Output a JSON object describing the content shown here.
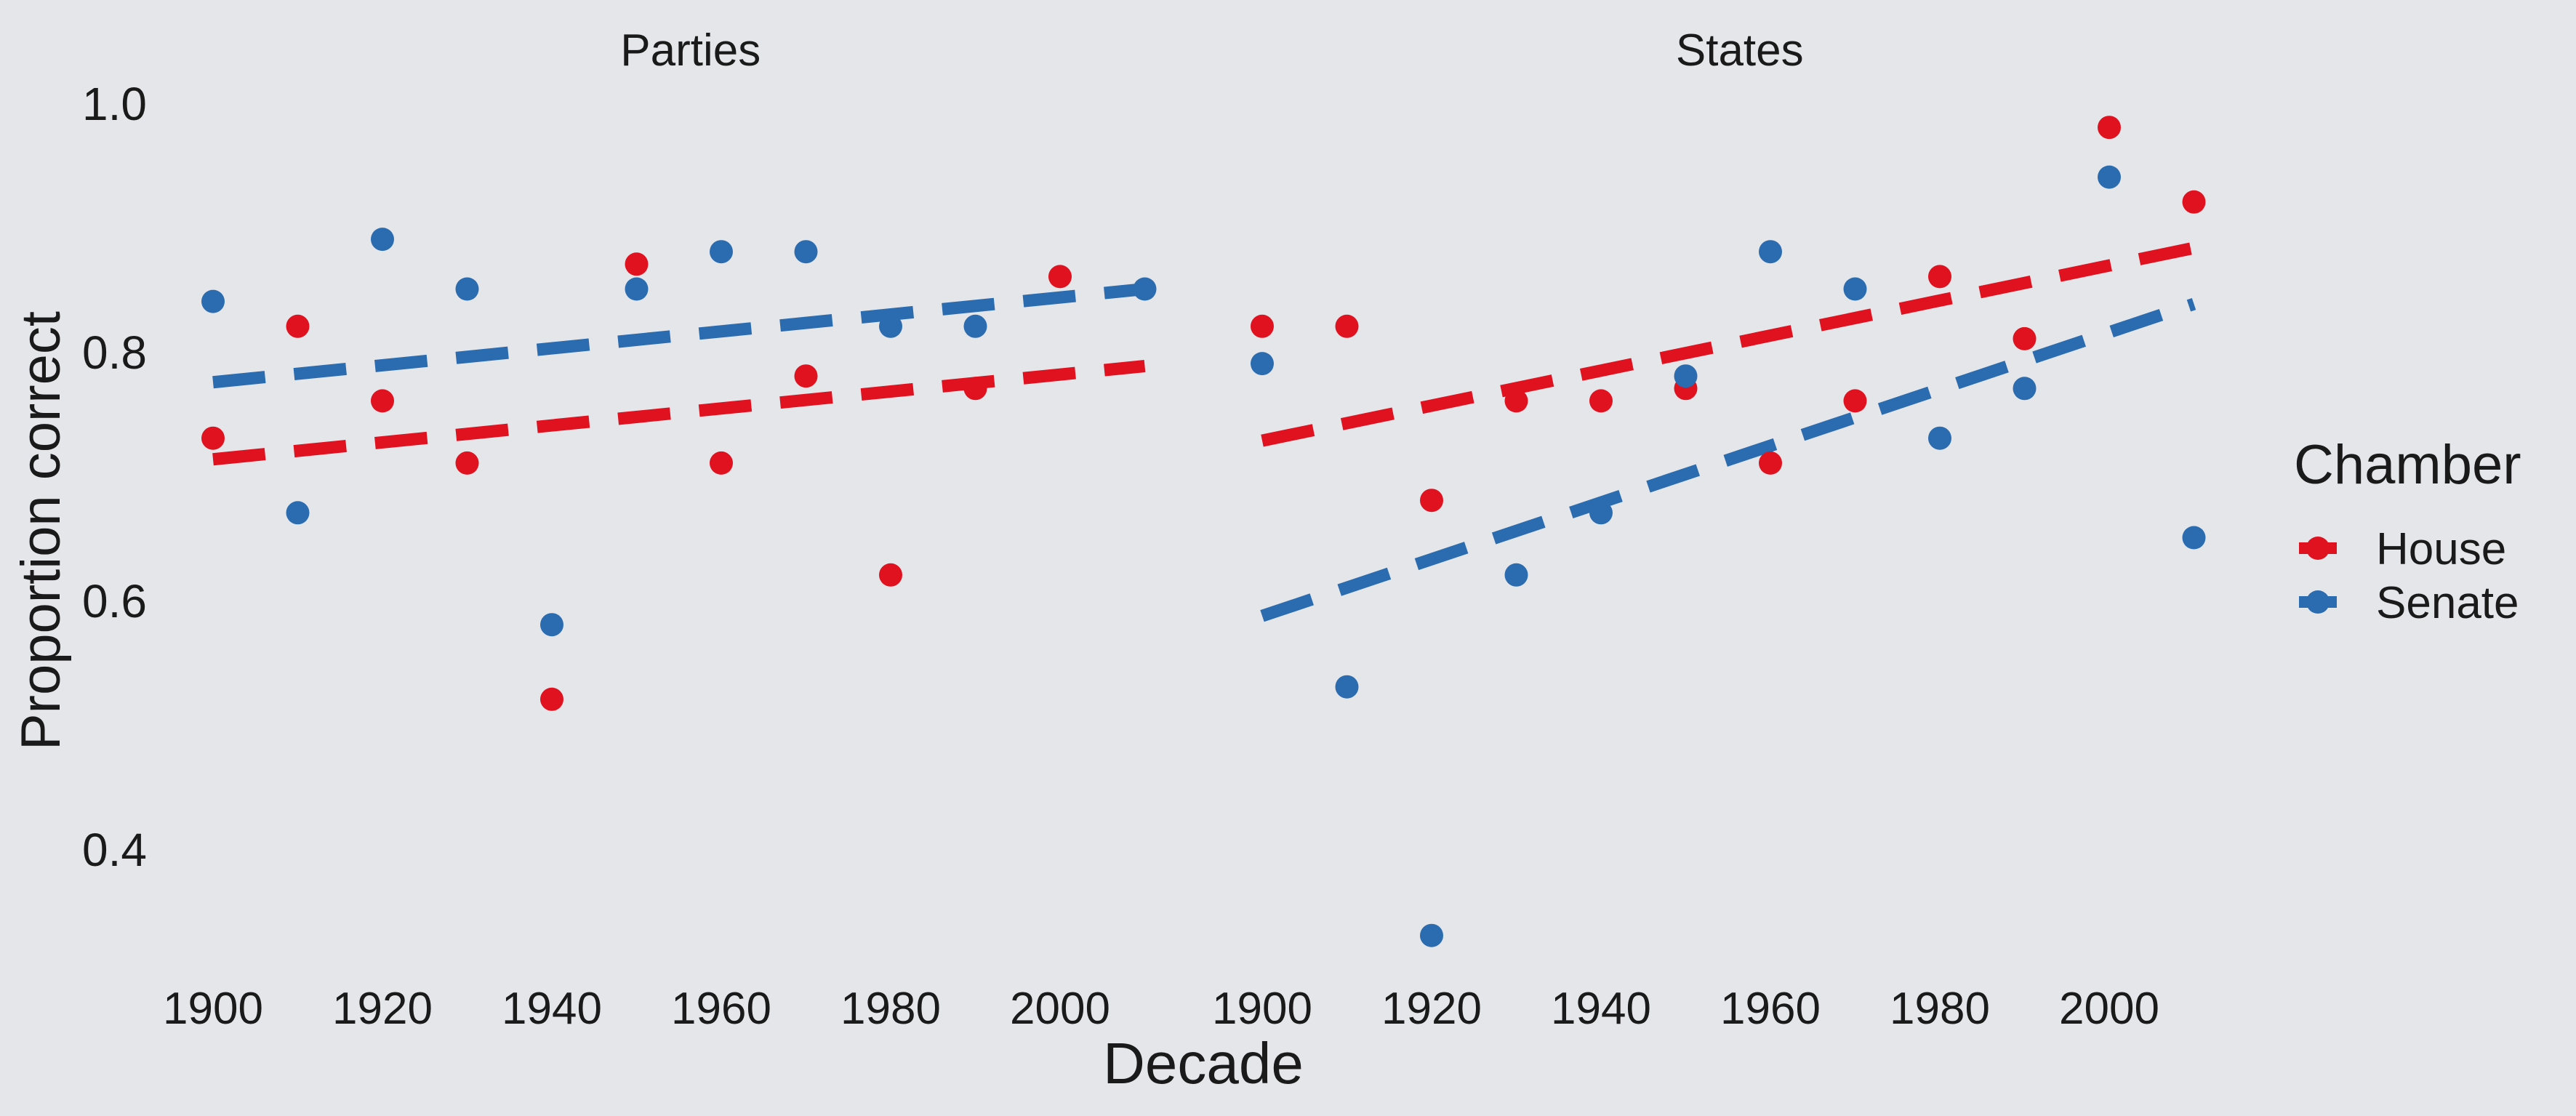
{
  "chart_data": {
    "type": "scatter",
    "xlabel": "Decade",
    "ylabel": "Proportion correct",
    "xlim": [
      1900,
      2010
    ],
    "ylim": [
      0.3,
      1.0
    ],
    "x_ticks": [
      1900,
      1920,
      1940,
      1960,
      1980,
      2000
    ],
    "y_ticks": [
      "0.4",
      "0.6",
      "0.8",
      "1.0"
    ],
    "grid": false,
    "legend": {
      "title": "Chamber",
      "position": "right",
      "entries": [
        {
          "name": "House",
          "color": "#e0121f"
        },
        {
          "name": "Senate",
          "color": "#2b6cb0"
        }
      ]
    },
    "panels": [
      {
        "title": "Parties",
        "series": [
          {
            "name": "House",
            "color": "#e0121f",
            "x": [
              1900,
              1910,
              1920,
              1930,
              1940,
              1950,
              1960,
              1970,
              1980,
              1990,
              2000
            ],
            "y": [
              0.73,
              0.82,
              0.76,
              0.71,
              0.52,
              0.87,
              0.71,
              0.78,
              0.62,
              0.77,
              0.86
            ],
            "trend": [
              0.713,
              0.788
            ]
          },
          {
            "name": "Senate",
            "color": "#2b6cb0",
            "x": [
              1900,
              1910,
              1920,
              1930,
              1940,
              1950,
              1960,
              1970,
              1980,
              1990,
              2010
            ],
            "y": [
              0.84,
              0.67,
              0.89,
              0.85,
              0.58,
              0.85,
              0.88,
              0.88,
              0.82,
              0.82,
              0.85
            ],
            "trend": [
              0.775,
              0.85
            ]
          }
        ]
      },
      {
        "title": "States",
        "series": [
          {
            "name": "House",
            "color": "#e0121f",
            "x": [
              1900,
              1910,
              1920,
              1930,
              1940,
              1950,
              1960,
              1970,
              1980,
              1990,
              2000,
              2010
            ],
            "y": [
              0.82,
              0.82,
              0.68,
              0.76,
              0.76,
              0.77,
              0.71,
              0.76,
              0.86,
              0.81,
              0.98,
              0.92
            ],
            "trend": [
              0.728,
              0.883
            ]
          },
          {
            "name": "Senate",
            "color": "#2b6cb0",
            "x": [
              1900,
              1910,
              1920,
              1930,
              1940,
              1950,
              1960,
              1970,
              1980,
              1990,
              2000,
              2010
            ],
            "y": [
              0.79,
              0.53,
              0.33,
              0.62,
              0.67,
              0.78,
              0.88,
              0.85,
              0.73,
              0.77,
              0.94,
              0.65
            ],
            "trend": [
              0.587,
              0.838
            ]
          }
        ]
      }
    ]
  }
}
